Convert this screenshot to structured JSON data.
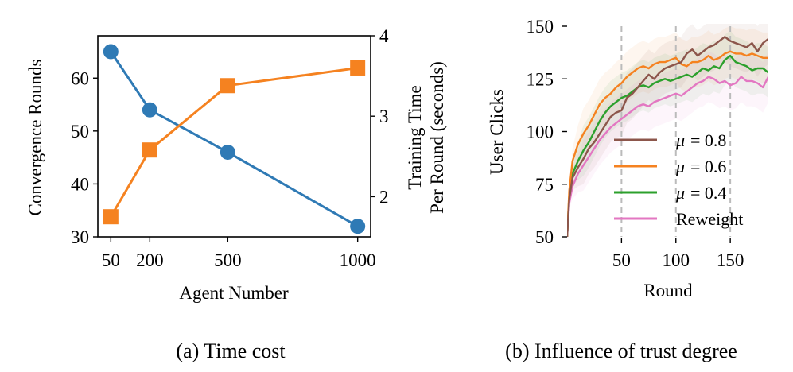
{
  "colors": {
    "blue": "#2f7ab5",
    "orange": "#f58220",
    "brown": "#8c564b",
    "green": "#2ca02c",
    "pink": "#e377c2",
    "grid_dash": "#bbbbbb"
  },
  "chart_data": [
    {
      "type": "line",
      "title": "",
      "caption": "(a) Time cost",
      "xlabel": "Agent Number",
      "ylabel_left": "Convergence Rounds",
      "ylabel_right_line1": "Training Time",
      "ylabel_right_line2": "Per Round (seconds)",
      "x": [
        50,
        200,
        500,
        1000
      ],
      "x_tick_labels": [
        "50",
        "200",
        "500",
        "1000"
      ],
      "xlim": [
        0,
        1050
      ],
      "ylim_left": [
        30,
        68
      ],
      "y_ticks_left": [
        30,
        40,
        50,
        60
      ],
      "ylim_right": [
        1.5,
        4.0
      ],
      "y_ticks_right": [
        2,
        3,
        4
      ],
      "series": [
        {
          "name": "Convergence Rounds",
          "axis": "left",
          "marker": "circle",
          "color": "#2f7ab5",
          "values": [
            65,
            54,
            46,
            32
          ]
        },
        {
          "name": "Training Time Per Round (seconds)",
          "axis": "right",
          "marker": "square",
          "color": "#f58220",
          "values": [
            1.75,
            2.58,
            3.38,
            3.6
          ]
        }
      ]
    },
    {
      "type": "line",
      "title": "",
      "caption": "(b) Influence of trust degree",
      "xlabel": "Round",
      "ylabel": "User Clicks",
      "xlim": [
        0,
        185
      ],
      "x_ticks": [
        50,
        100,
        150
      ],
      "ylim": [
        50,
        150
      ],
      "y_ticks": [
        50,
        75,
        100,
        125,
        150
      ],
      "vlines": [
        50,
        100,
        150
      ],
      "legend_position": "lower-right",
      "series": [
        {
          "name": "μ = 0.8",
          "label_mu": "μ",
          "label_eq": "= 0.8",
          "color": "#8c564b",
          "x": [
            0,
            2,
            5,
            10,
            15,
            20,
            25,
            30,
            35,
            40,
            45,
            50,
            55,
            60,
            65,
            70,
            75,
            80,
            85,
            90,
            95,
            100,
            105,
            110,
            115,
            120,
            125,
            130,
            135,
            140,
            145,
            150,
            155,
            160,
            165,
            170,
            175,
            180,
            185
          ],
          "values": [
            50,
            68,
            78,
            83,
            87,
            92,
            95,
            99,
            103,
            107,
            109,
            110,
            116,
            118,
            121,
            124,
            127,
            125,
            128,
            130,
            131,
            132,
            133,
            137,
            139,
            136,
            138,
            140,
            141,
            143,
            145,
            143,
            142,
            141,
            140,
            142,
            138,
            142,
            144
          ]
        },
        {
          "name": "μ = 0.6",
          "label_mu": "μ",
          "label_eq": "= 0.6",
          "color": "#f58220",
          "x": [
            0,
            2,
            5,
            10,
            15,
            20,
            25,
            30,
            35,
            40,
            45,
            50,
            55,
            60,
            65,
            70,
            75,
            80,
            85,
            90,
            95,
            100,
            105,
            110,
            115,
            120,
            125,
            130,
            135,
            140,
            145,
            150,
            155,
            160,
            165,
            170,
            175,
            180,
            185
          ],
          "values": [
            50,
            72,
            86,
            94,
            99,
            103,
            108,
            113,
            116,
            118,
            121,
            123,
            126,
            128,
            130,
            131,
            130,
            132,
            133,
            133,
            134,
            135,
            132,
            131,
            133,
            133,
            134,
            136,
            134,
            135,
            137,
            138,
            137,
            137,
            136,
            137,
            136,
            135,
            135
          ]
        },
        {
          "name": "μ = 0.4",
          "label_mu": "μ",
          "label_eq": "= 0.4",
          "color": "#2ca02c",
          "x": [
            0,
            2,
            5,
            10,
            15,
            20,
            25,
            30,
            35,
            40,
            45,
            50,
            55,
            60,
            65,
            70,
            75,
            80,
            85,
            90,
            95,
            100,
            105,
            110,
            115,
            120,
            125,
            130,
            135,
            140,
            145,
            150,
            155,
            160,
            165,
            170,
            175,
            180,
            185
          ],
          "values": [
            50,
            70,
            80,
            86,
            91,
            95,
            100,
            105,
            109,
            112,
            114,
            116,
            117,
            119,
            121,
            122,
            121,
            123,
            124,
            125,
            124,
            125,
            126,
            127,
            126,
            128,
            130,
            129,
            131,
            130,
            134,
            136,
            133,
            132,
            131,
            129,
            130,
            130,
            128
          ]
        },
        {
          "name": "Reweight",
          "label_mu": "",
          "label_eq": "Reweight",
          "color": "#e377c2",
          "x": [
            0,
            2,
            5,
            10,
            15,
            20,
            25,
            30,
            35,
            40,
            45,
            50,
            55,
            60,
            65,
            70,
            75,
            80,
            85,
            90,
            95,
            100,
            105,
            110,
            115,
            120,
            125,
            130,
            135,
            140,
            145,
            150,
            155,
            160,
            165,
            170,
            175,
            180,
            185
          ],
          "values": [
            50,
            66,
            74,
            80,
            84,
            88,
            92,
            96,
            99,
            102,
            104,
            106,
            108,
            110,
            112,
            113,
            112,
            114,
            115,
            116,
            117,
            118,
            117,
            119,
            121,
            123,
            124,
            126,
            125,
            123,
            124,
            122,
            123,
            126,
            124,
            124,
            123,
            121,
            126
          ]
        }
      ]
    }
  ]
}
